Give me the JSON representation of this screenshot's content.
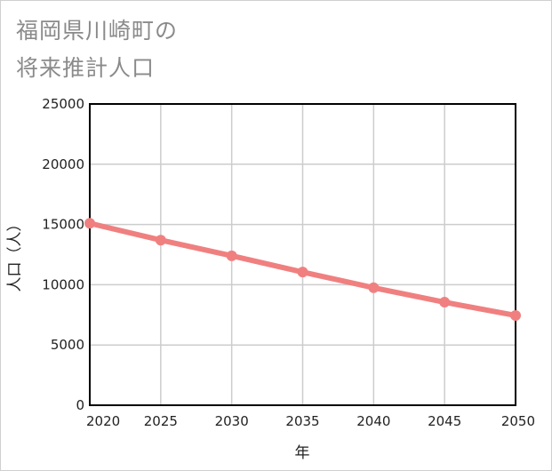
{
  "chart_data": {
    "type": "line",
    "title_lines": [
      "福岡県川崎町の",
      "将来推計人口"
    ],
    "xlabel": "年",
    "ylabel": "人口（人）",
    "x": [
      2020,
      2025,
      2030,
      2035,
      2040,
      2045,
      2050
    ],
    "series": [
      {
        "values": [
          15100,
          13700,
          12400,
          11050,
          9750,
          8550,
          7450
        ]
      }
    ],
    "xlim": [
      2020,
      2050
    ],
    "ylim": [
      0,
      25000
    ],
    "yticks": [
      0,
      5000,
      10000,
      15000,
      20000,
      25000
    ],
    "xticks": [
      2020,
      2025,
      2030,
      2035,
      2040,
      2045,
      2050
    ],
    "grid": true,
    "line_color": "#f08080"
  }
}
